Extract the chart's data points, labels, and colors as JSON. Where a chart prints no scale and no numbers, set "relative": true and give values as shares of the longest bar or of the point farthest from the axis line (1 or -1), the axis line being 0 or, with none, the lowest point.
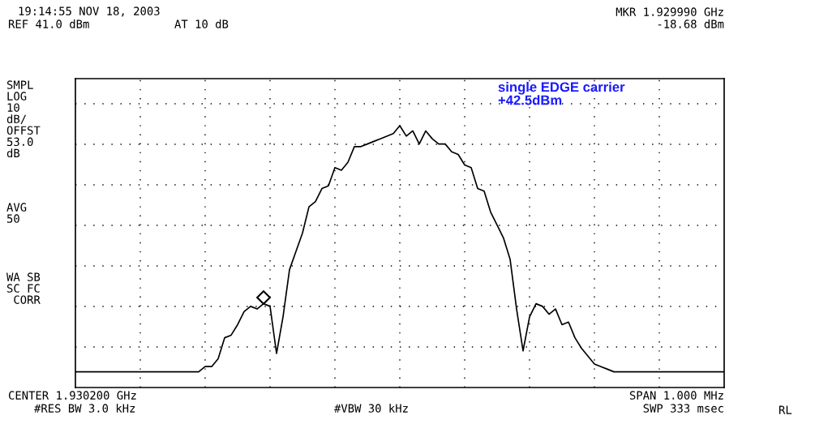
{
  "chart_data": {
    "type": "line",
    "relative": true,
    "grid": true,
    "legend": false,
    "title": "19:14:55 NOV 18, 2003",
    "annotations": [
      "REF 41.0 dBm",
      "AT 10 dB",
      "MKR 1.929990 GHz",
      "-18.68 dBm",
      "SMPL\nLOG\n10\ndB/\nOFFST\n53.0\ndB",
      "AVG\n50",
      "WA SB\nSC FC\n CORR",
      "single EDGE carrier\n+42.5dBm",
      "CENTER 1.930200 GHz",
      "#RES BW 3.0 kHz",
      "#VBW 30 kHz",
      "SPAN 1.000 MHz",
      "SWP 333 msec",
      "RL"
    ],
    "categories": [
      null,
      null,
      null,
      null,
      null,
      null,
      null,
      null,
      null,
      null,
      null,
      null,
      null,
      null,
      null,
      null,
      null,
      null,
      null,
      null,
      null,
      null,
      null,
      null,
      null,
      null,
      null,
      null,
      null,
      null,
      null,
      null,
      null,
      null,
      null,
      null,
      null,
      null,
      null,
      null,
      null,
      null,
      null,
      null,
      null,
      null,
      null,
      null,
      null,
      null,
      null,
      null,
      null,
      null,
      null,
      null,
      null,
      null,
      null,
      null,
      null,
      null,
      null,
      null,
      null,
      null,
      null,
      null,
      null,
      null,
      null,
      null,
      null,
      null,
      null,
      null,
      null,
      null,
      null,
      null,
      null,
      null,
      null,
      null,
      null,
      null,
      null,
      null,
      null,
      null,
      null,
      null,
      null,
      null,
      null,
      null,
      null,
      null,
      null,
      null,
      null
    ],
    "series": [
      {
        "color": "#000000",
        "marker": "none",
        "line_style": "solid",
        "values": [
          0.06,
          0.06,
          0.06,
          0.06,
          0.06,
          0.06,
          0.06,
          0.06,
          0.06,
          0.06,
          0.06,
          0.06,
          0.06,
          0.06,
          0.06,
          0.06,
          0.06,
          0.06,
          0.06,
          0.06,
          0.08,
          0.08,
          0.11,
          0.19,
          0.2,
          0.24,
          0.29,
          0.31,
          0.3,
          0.32,
          0.31,
          0.13,
          0.27,
          0.45,
          0.52,
          0.59,
          0.69,
          0.71,
          0.76,
          0.77,
          0.84,
          0.83,
          0.86,
          0.92,
          0.92,
          0.93,
          0.94,
          0.95,
          0.96,
          0.97,
          1.0,
          0.96,
          0.98,
          0.93,
          0.98,
          0.95,
          0.93,
          0.93,
          0.9,
          0.89,
          0.85,
          0.84,
          0.76,
          0.75,
          0.67,
          0.62,
          0.57,
          0.49,
          0.3,
          0.14,
          0.27,
          0.32,
          0.31,
          0.28,
          0.3,
          0.24,
          0.25,
          0.19,
          0.15,
          0.12,
          0.09,
          0.08,
          0.07,
          0.06,
          0.06,
          0.06,
          0.06,
          0.06,
          0.06,
          0.06,
          0.06,
          0.06,
          0.06,
          0.06,
          0.06,
          0.06,
          0.06,
          0.06,
          0.06,
          0.06,
          0.06
        ]
      }
    ]
  }
}
